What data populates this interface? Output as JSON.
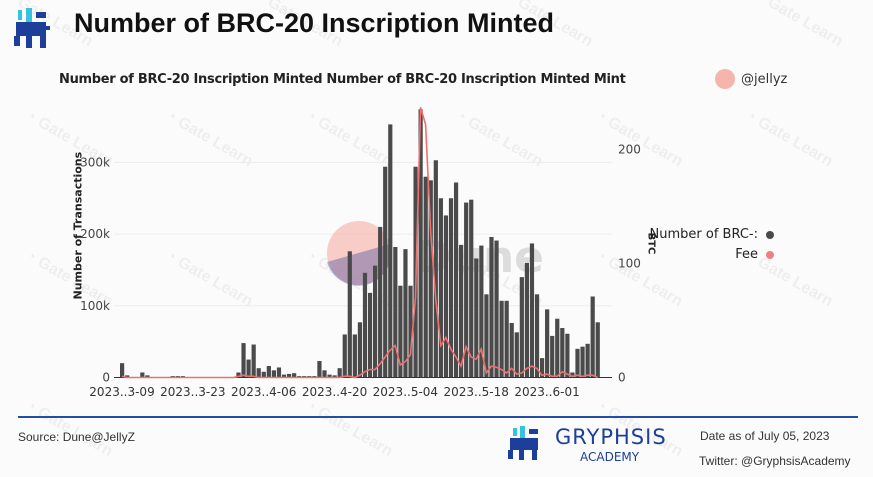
{
  "header": {
    "title": "Number of BRC-20 Inscription Minted"
  },
  "chart_meta": {
    "subtitle": "Number of BRC-20 Inscription Minted   Number of BRC-20 Inscription Minted Mint",
    "handle": "@jellyz",
    "watermark": "Gate Learn",
    "dune_watermark": "Dune"
  },
  "chart_data": {
    "type": "bar+line",
    "title": "Number of BRC-20 Inscription Minted",
    "ylabel": "Number of Transactions",
    "y2label": "BTC",
    "ylim": [
      0,
      375000
    ],
    "y2lim": [
      0,
      237
    ],
    "yticks": [
      {
        "v": 0,
        "label": "0"
      },
      {
        "v": 100000,
        "label": "100k"
      },
      {
        "v": 200000,
        "label": "200k"
      },
      {
        "v": 300000,
        "label": "300k"
      }
    ],
    "y2ticks": [
      {
        "v": 0,
        "label": "0"
      },
      {
        "v": 100,
        "label": "100"
      },
      {
        "v": 200,
        "label": "200"
      }
    ],
    "xticks": [
      {
        "i": 0,
        "label": "2023..3-09"
      },
      {
        "i": 14,
        "label": "2023..3-23"
      },
      {
        "i": 28,
        "label": "2023..4-06"
      },
      {
        "i": 42,
        "label": "2023..4-20"
      },
      {
        "i": 56,
        "label": "2023..5-04"
      },
      {
        "i": 70,
        "label": "2023..5-18"
      },
      {
        "i": 84,
        "label": "2023..6-01"
      }
    ],
    "start_date": "2023-03-09",
    "series": [
      {
        "name": "Number of BRC-20 Inscription Minted",
        "legend": "Number of BRC-:",
        "type": "bar",
        "color": "#4a4a4a",
        "values": [
          20000,
          3000,
          0,
          0,
          7000,
          3000,
          0,
          0,
          0,
          0,
          2000,
          2000,
          2000,
          0,
          0,
          0,
          0,
          0,
          0,
          0,
          0,
          0,
          0,
          7000,
          48000,
          25000,
          46000,
          13000,
          8000,
          16000,
          10000,
          14000,
          4000,
          5000,
          6000,
          2000,
          2000,
          2000,
          2000,
          23000,
          10000,
          4000,
          3000,
          13000,
          60000,
          176000,
          60000,
          77000,
          146000,
          118000,
          156000,
          210000,
          294000,
          353000,
          182000,
          128000,
          179000,
          128000,
          294000,
          374000,
          280000,
          275000,
          303000,
          250000,
          226000,
          250000,
          272000,
          185000,
          244000,
          248000,
          166000,
          184000,
          116000,
          196000,
          191000,
          107000,
          107000,
          76000,
          63000,
          140000,
          160000,
          187000,
          116000,
          27000,
          95000,
          58000,
          82000,
          69000,
          61000,
          7000,
          40000,
          43000,
          47000,
          113000,
          77000
        ]
      },
      {
        "name": "Fee",
        "legend": "Fee",
        "type": "line",
        "color": "#f07070",
        "values": [
          1,
          0,
          0,
          0,
          0,
          0,
          0,
          0,
          0,
          0,
          0,
          0,
          0,
          0,
          0,
          0,
          0,
          0,
          0,
          0,
          0,
          0,
          0,
          1,
          2,
          1,
          1,
          0,
          0,
          0,
          0,
          0,
          0,
          0,
          0,
          0,
          0,
          0,
          0,
          0,
          0,
          0,
          0,
          0,
          1,
          1,
          0,
          2,
          5,
          7,
          7,
          12,
          18,
          24,
          28,
          11,
          14,
          20,
          70,
          237,
          222,
          128,
          69,
          28,
          35,
          25,
          18,
          10,
          27,
          18,
          16,
          25,
          4,
          10,
          9,
          7,
          4,
          8,
          3,
          4,
          8,
          10,
          8,
          2,
          3,
          1,
          1,
          5,
          3,
          1,
          2,
          1,
          2,
          2,
          0
        ]
      }
    ],
    "legend_position": "right"
  },
  "footer": {
    "source": "Source: Dune@JellyZ",
    "brand": "GRYPHSIS",
    "brand_sub": "ACADEMY",
    "date": "Date as of July 05, 2023",
    "twitter": "Twitter: @GryphsisAcademy"
  },
  "colors": {
    "accent": "#1f4fa8",
    "bar": "#4a4a4a",
    "fee": "#f07070"
  }
}
